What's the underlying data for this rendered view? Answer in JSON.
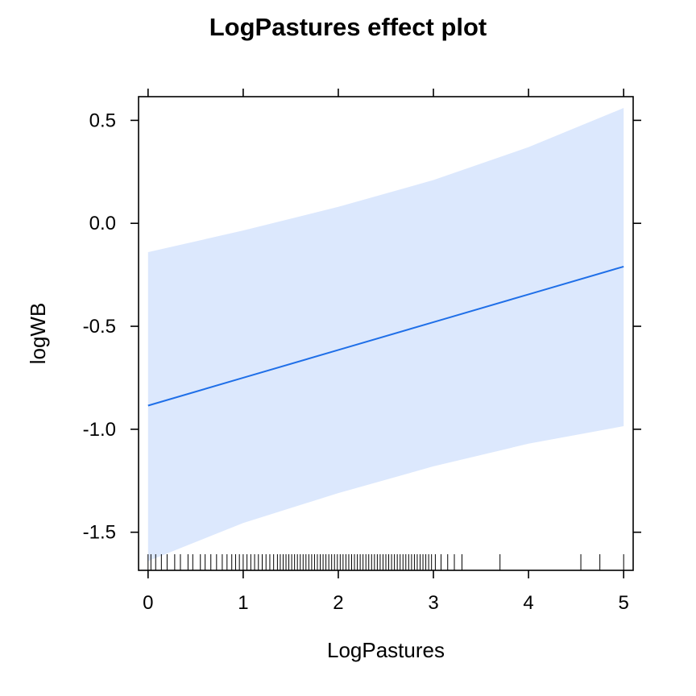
{
  "chart_data": {
    "type": "line",
    "title": "LogPastures effect plot",
    "xlabel": "LogPastures",
    "ylabel": "logWB",
    "xlim": [
      -0.1,
      5.1
    ],
    "ylim": [
      -1.685,
      0.615
    ],
    "x_ticks": [
      0,
      1,
      2,
      3,
      4,
      5
    ],
    "x_tick_labels": [
      "0",
      "1",
      "2",
      "3",
      "4",
      "5"
    ],
    "y_ticks": [
      0.5,
      0.0,
      -0.5,
      -1.0,
      -1.5
    ],
    "y_tick_labels": [
      "0.5",
      "0.0",
      "-0.5",
      "-1.0",
      "-1.5"
    ],
    "grid": false,
    "colors": {
      "fit_line": "#1f6fe8",
      "confidence_band": "#dce8fd",
      "axes": "#000000"
    },
    "series": [
      {
        "x": [
          0,
          1,
          2,
          3,
          4,
          5
        ],
        "fit": [
          -0.885,
          -0.75,
          -0.615,
          -0.48,
          -0.345,
          -0.21
        ],
        "lower": [
          -1.64,
          -1.455,
          -1.31,
          -1.18,
          -1.07,
          -0.985
        ],
        "upper": [
          -0.14,
          -0.035,
          0.08,
          0.21,
          0.37,
          0.56
        ]
      }
    ],
    "rug_x": [
      0.0,
      0.03,
      0.08,
      0.14,
      0.2,
      0.28,
      0.34,
      0.42,
      0.47,
      0.55,
      0.6,
      0.66,
      0.72,
      0.78,
      0.83,
      0.88,
      0.92,
      0.96,
      1.0,
      1.04,
      1.08,
      1.12,
      1.16,
      1.2,
      1.24,
      1.28,
      1.32,
      1.36,
      1.39,
      1.42,
      1.45,
      1.48,
      1.51,
      1.54,
      1.57,
      1.6,
      1.63,
      1.66,
      1.69,
      1.72,
      1.75,
      1.78,
      1.81,
      1.84,
      1.87,
      1.9,
      1.93,
      1.96,
      1.99,
      2.02,
      2.05,
      2.08,
      2.11,
      2.14,
      2.17,
      2.2,
      2.23,
      2.26,
      2.29,
      2.32,
      2.35,
      2.38,
      2.41,
      2.44,
      2.47,
      2.5,
      2.53,
      2.56,
      2.59,
      2.62,
      2.65,
      2.68,
      2.71,
      2.74,
      2.77,
      2.8,
      2.83,
      2.86,
      2.89,
      2.92,
      2.95,
      2.98,
      3.02,
      3.08,
      3.15,
      3.22,
      3.3,
      3.7,
      4.55,
      4.75,
      5.0
    ]
  }
}
